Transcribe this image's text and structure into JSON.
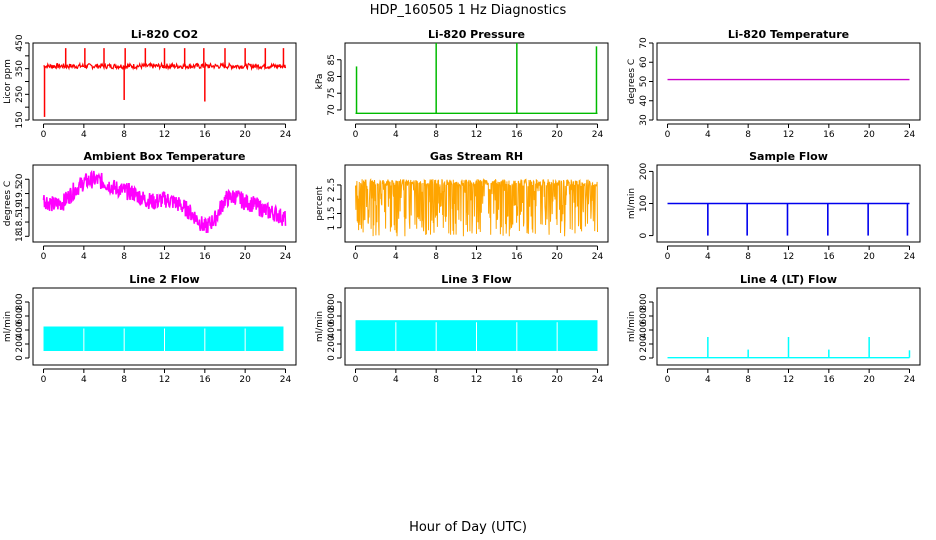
{
  "figure": {
    "title": "HDP_160505  1 Hz Diagnostics",
    "xlabel": "Hour of Day (UTC)"
  },
  "chart_data": [
    {
      "type": "line",
      "title": "Li-820 CO2",
      "ylabel": "Licor ppm",
      "color": "#ff0000",
      "xlim": [
        0,
        24
      ],
      "xticks": [
        0,
        4,
        8,
        12,
        16,
        20,
        24
      ],
      "ylim": [
        150,
        450
      ],
      "yticks": [
        150,
        200,
        250,
        300,
        350,
        400,
        450
      ],
      "baseline": 360,
      "band_low": 350,
      "band_high": 370,
      "spikes": [
        {
          "x": 0.1,
          "y": 162
        },
        {
          "x": 2.2,
          "y": 430
        },
        {
          "x": 4.1,
          "y": 430
        },
        {
          "x": 6.0,
          "y": 430
        },
        {
          "x": 8.0,
          "y": 228
        },
        {
          "x": 8.1,
          "y": 430
        },
        {
          "x": 10.1,
          "y": 430
        },
        {
          "x": 12.0,
          "y": 430
        },
        {
          "x": 14.0,
          "y": 430
        },
        {
          "x": 15.9,
          "y": 430
        },
        {
          "x": 16.0,
          "y": 222
        },
        {
          "x": 18.0,
          "y": 430
        },
        {
          "x": 20.0,
          "y": 430
        },
        {
          "x": 22.0,
          "y": 430
        },
        {
          "x": 23.8,
          "y": 430
        }
      ]
    },
    {
      "type": "line",
      "title": "Li-820 Pressure",
      "ylabel": "kPa",
      "color": "#00bb00",
      "xlim": [
        0,
        24
      ],
      "xticks": [
        0,
        4,
        8,
        12,
        16,
        20,
        24
      ],
      "ylim": [
        67,
        90
      ],
      "yticks": [
        70,
        75,
        80,
        85
      ],
      "baseline": 69,
      "spikes": [
        {
          "x": 0.1,
          "y": 83
        },
        {
          "x": 8.0,
          "y": 90
        },
        {
          "x": 16.0,
          "y": 90
        },
        {
          "x": 23.9,
          "y": 89
        }
      ]
    },
    {
      "type": "line",
      "title": "Li-820 Temperature",
      "ylabel": "degrees C",
      "color": "#cc00cc",
      "xlim": [
        0,
        24
      ],
      "xticks": [
        0,
        4,
        8,
        12,
        16,
        20,
        24
      ],
      "ylim": [
        30,
        70
      ],
      "yticks": [
        30,
        40,
        50,
        60,
        70
      ],
      "baseline": 51
    },
    {
      "type": "line",
      "title": "Ambient Box Temperature",
      "ylabel": "degrees C",
      "color": "#ff00ff",
      "xlim": [
        0,
        24
      ],
      "xticks": [
        0,
        4,
        8,
        12,
        16,
        20,
        24
      ],
      "ylim": [
        17.8,
        20.5
      ],
      "yticks": [
        18.0,
        18.5,
        19.0,
        19.5,
        20.0
      ],
      "x": [
        0,
        1,
        2,
        3,
        4,
        5,
        6,
        7,
        8,
        9,
        10,
        11,
        12,
        13,
        14,
        15,
        16,
        17,
        18,
        19,
        20,
        21,
        22,
        23,
        24
      ],
      "y": [
        19.3,
        19.1,
        19.2,
        19.6,
        19.9,
        20.0,
        19.9,
        19.7,
        19.6,
        19.5,
        19.3,
        19.2,
        19.3,
        19.2,
        19.0,
        18.7,
        18.3,
        18.6,
        19.3,
        19.4,
        19.2,
        19.1,
        18.9,
        18.8,
        18.6
      ],
      "spread": 0.3
    },
    {
      "type": "line",
      "title": "Gas Stream RH",
      "ylabel": "percent",
      "color": "#ffa500",
      "xlim": [
        0,
        24
      ],
      "xticks": [
        0,
        4,
        8,
        12,
        16,
        20,
        24
      ],
      "ylim": [
        0.5,
        3.2
      ],
      "yticks": [
        1.0,
        1.5,
        2.0,
        2.5
      ],
      "band_low": 0.7,
      "band_high": 2.7,
      "density_center": 2.2
    },
    {
      "type": "line",
      "title": "Sample Flow",
      "ylabel": "ml/min",
      "color": "#0000ee",
      "xlim": [
        0,
        24
      ],
      "xticks": [
        0,
        4,
        8,
        12,
        16,
        20,
        24
      ],
      "ylim": [
        -20,
        220
      ],
      "yticks": [
        0,
        100,
        200
      ],
      "baseline": 100,
      "dips": [
        {
          "x": 4.0,
          "y": 0
        },
        {
          "x": 7.9,
          "y": 0
        },
        {
          "x": 11.9,
          "y": 0
        },
        {
          "x": 15.9,
          "y": 0
        },
        {
          "x": 19.9,
          "y": 0
        },
        {
          "x": 23.8,
          "y": 0
        }
      ]
    },
    {
      "type": "area",
      "title": "Line 2 Flow",
      "ylabel": "ml/min",
      "color": "#00ffff",
      "xlim": [
        0,
        24
      ],
      "xticks": [
        0,
        4,
        8,
        12,
        16,
        20,
        24
      ],
      "ylim": [
        -100,
        1000
      ],
      "yticks": [
        0,
        200,
        400,
        600,
        800
      ],
      "band_low": 100,
      "band_high": 450,
      "band_xmin": 0,
      "band_xmax": 23.8,
      "gaps": [
        4.0,
        8.0,
        12.0,
        16.0,
        20.0
      ]
    },
    {
      "type": "area",
      "title": "Line 3 Flow",
      "ylabel": "ml/min",
      "color": "#00ffff",
      "xlim": [
        0,
        24
      ],
      "xticks": [
        0,
        4,
        8,
        12,
        16,
        20,
        24
      ],
      "ylim": [
        -100,
        1000
      ],
      "yticks": [
        0,
        200,
        400,
        600,
        800
      ],
      "band_low": 100,
      "band_high": 540,
      "band_xmin": 0,
      "band_xmax": 24,
      "gaps": [
        4.0,
        8.0,
        12.0,
        16.0,
        20.0
      ]
    },
    {
      "type": "line",
      "title": "Line 4 (LT) Flow",
      "ylabel": "ml/min",
      "color": "#00ffff",
      "xlim": [
        0,
        24
      ],
      "xticks": [
        0,
        4,
        8,
        12,
        16,
        20,
        24
      ],
      "ylim": [
        -100,
        1000
      ],
      "yticks": [
        0,
        200,
        400,
        600,
        800
      ],
      "baseline": 5,
      "spikes": [
        {
          "x": 4.0,
          "y": 300
        },
        {
          "x": 8.0,
          "y": 120
        },
        {
          "x": 12.0,
          "y": 300
        },
        {
          "x": 16.0,
          "y": 120
        },
        {
          "x": 20.0,
          "y": 300
        },
        {
          "x": 24.0,
          "y": 110
        }
      ]
    }
  ]
}
